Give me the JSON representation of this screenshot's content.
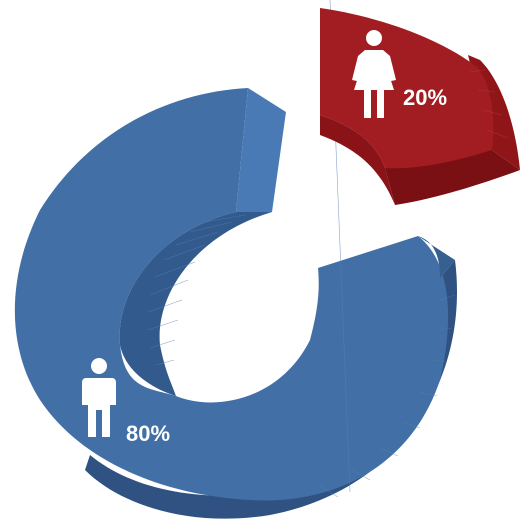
{
  "chart_data": {
    "type": "pie",
    "variant": "3d-exploded-donut",
    "title": "",
    "legend": "none",
    "slices": [
      {
        "label": "80%",
        "value": 80,
        "icon": "male-person-icon",
        "color": "#4270a6",
        "side_color": "#2f5282",
        "top_color": "#4a7ab6"
      },
      {
        "label": "20%",
        "value": 20,
        "icon": "female-person-icon",
        "color": "#a11d21",
        "side_color": "#7b1014",
        "top_color": "#b52428"
      }
    ]
  }
}
